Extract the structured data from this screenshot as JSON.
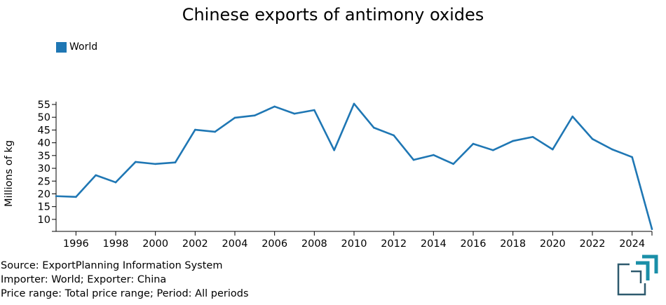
{
  "chart_data": {
    "type": "line",
    "title": "Chinese exports of antimony oxides",
    "ylabel": "Millions of kg",
    "xlabel": "",
    "xlim": [
      1995,
      2025
    ],
    "ylim": [
      5.3,
      56.1
    ],
    "yticks": [
      10,
      15,
      20,
      25,
      30,
      35,
      40,
      45,
      50,
      55
    ],
    "xticks": [
      1996,
      1998,
      2000,
      2002,
      2004,
      2006,
      2008,
      2010,
      2012,
      2014,
      2016,
      2018,
      2020,
      2022,
      2024
    ],
    "grid": false,
    "legend_position": "top-left",
    "series": [
      {
        "name": "World",
        "color": "#1f77b4",
        "x": [
          1995,
          1996,
          1997,
          1998,
          1999,
          2000,
          2001,
          2002,
          2003,
          2004,
          2005,
          2006,
          2007,
          2008,
          2009,
          2010,
          2011,
          2012,
          2013,
          2014,
          2015,
          2016,
          2017,
          2018,
          2019,
          2020,
          2021,
          2022,
          2023,
          2024,
          2025
        ],
        "y": [
          19.1,
          18.8,
          27.3,
          24.5,
          32.5,
          31.7,
          32.3,
          45.1,
          44.3,
          49.8,
          50.7,
          54.2,
          51.4,
          52.8,
          37.1,
          55.3,
          45.9,
          42.9,
          33.3,
          35.2,
          31.7,
          39.6,
          37.1,
          40.7,
          42.3,
          37.4,
          50.3,
          41.5,
          37.4,
          34.4,
          6.2
        ]
      }
    ]
  },
  "footer": {
    "source": "Source: ExportPlanning Information System",
    "importer": "Importer: World; Exporter: China",
    "price": "Price range: Total price range; Period: All periods"
  },
  "logo": {
    "colors": [
      "#2e5a6e",
      "#1a8fa8"
    ]
  }
}
